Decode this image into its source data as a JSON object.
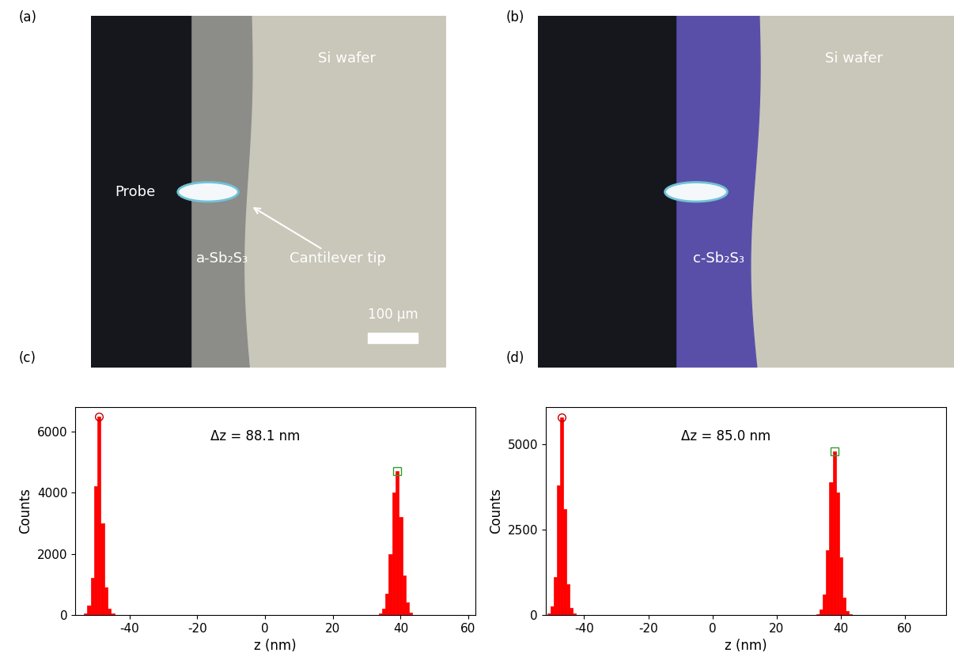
{
  "photos": [
    {
      "panel": "(a)",
      "probe": "Probe",
      "film": "a-Sb₂S₃",
      "tip": "Cantilever tip",
      "substrate": "Si wafer",
      "scale_bar": "100 µm"
    },
    {
      "panel": "(b)",
      "film": "c-Sb₂S₃",
      "substrate": "Si wafer"
    }
  ],
  "chart_data": [
    {
      "type": "bar",
      "panel": "(c)",
      "annotation": "Δz = 88.1 nm",
      "x_label": "z (nm)",
      "y_label": "Counts",
      "color": "#ff0000",
      "x": [
        -53,
        -52,
        -51,
        -50,
        -49,
        -48,
        -47,
        -46,
        -45,
        34,
        35,
        36,
        37,
        38,
        39,
        40,
        41,
        42,
        43
      ],
      "values": [
        50,
        300,
        1200,
        4200,
        6500,
        3000,
        900,
        200,
        40,
        40,
        200,
        700,
        2000,
        4000,
        4700,
        3200,
        1300,
        400,
        80
      ],
      "peaks": [
        {
          "x": -49,
          "y": 6500,
          "marker": "circle",
          "color": "#c00000"
        },
        {
          "x": 39,
          "y": 4700,
          "marker": "square",
          "color": "#2ca02c"
        }
      ],
      "xlim": [
        -56,
        62
      ],
      "xticks": [
        -40,
        -20,
        0,
        20,
        40,
        60
      ],
      "ylim": [
        0,
        6800
      ],
      "yticks": [
        0,
        2000,
        4000,
        6000
      ]
    },
    {
      "type": "bar",
      "panel": "(d)",
      "annotation": "Δz = 85.0 nm",
      "x_label": "z (nm)",
      "y_label": "Counts",
      "color": "#ff0000",
      "x": [
        -51,
        -50,
        -49,
        -48,
        -47,
        -46,
        -45,
        -44,
        -43,
        33,
        34,
        35,
        36,
        37,
        38,
        39,
        40,
        41,
        42,
        43
      ],
      "values": [
        40,
        250,
        1100,
        3800,
        5800,
        3100,
        900,
        200,
        40,
        30,
        150,
        600,
        1900,
        3900,
        4800,
        3600,
        1700,
        500,
        120,
        30
      ],
      "peaks": [
        {
          "x": -47,
          "y": 5800,
          "marker": "circle",
          "color": "#c00000"
        },
        {
          "x": 38,
          "y": 4800,
          "marker": "square",
          "color": "#2ca02c"
        }
      ],
      "xlim": [
        -52,
        73
      ],
      "xticks": [
        -40,
        -20,
        0,
        20,
        40,
        60
      ],
      "ylim": [
        0,
        6100
      ],
      "yticks": [
        0,
        2500,
        5000
      ]
    }
  ]
}
